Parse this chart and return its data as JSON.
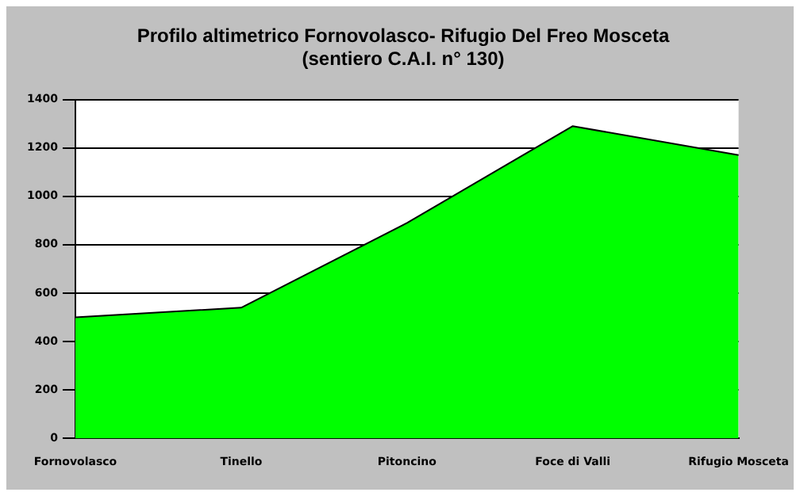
{
  "chart_data": {
    "type": "area",
    "title": [
      "Profilo altimetrico Fornovolasco- Rifugio Del Freo Mosceta",
      "(sentiero C.A.I. n° 130)"
    ],
    "categories": [
      "Fornovolasco",
      "Tinello",
      "Pitoncino",
      "Foce di Valli",
      "Rifugio Mosceta"
    ],
    "values": [
      500,
      540,
      890,
      1290,
      1170
    ],
    "color": "#00ff00",
    "ylim": [
      0,
      1400
    ],
    "yticks": [
      0,
      200,
      400,
      600,
      800,
      1000,
      1200,
      1400
    ],
    "grid": "y"
  }
}
